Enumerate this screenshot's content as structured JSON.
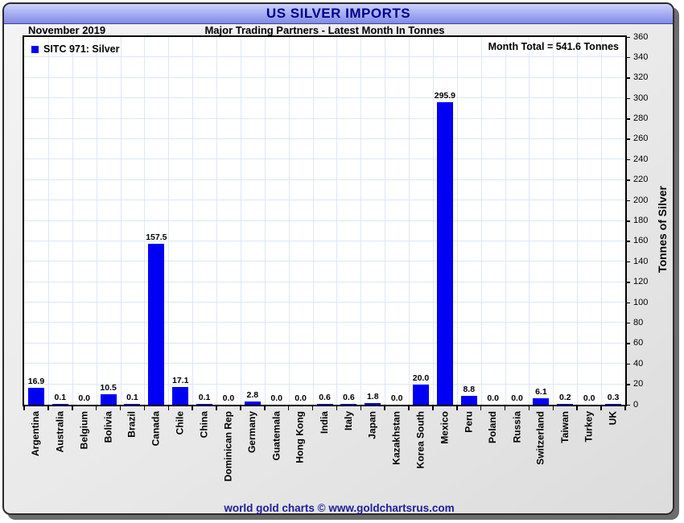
{
  "header": {
    "title": "US SILVER IMPORTS"
  },
  "subheader": {
    "date": "November 2019",
    "title": "Major Trading Partners - Latest Month In Tonnes"
  },
  "legend": {
    "label": "SITC 971: Silver"
  },
  "month_total_label": "Month Total = 541.6 Tonnes",
  "footer": "world gold charts © www.goldchartsrus.com",
  "colors": {
    "bar": "#0000f5",
    "grid": "#dbe8f6",
    "banner_text": "#00008b",
    "footer_text": "#1c1c9c",
    "banner_top": "#cdd1fa",
    "banner_bottom": "#8289e6"
  },
  "chart_data": {
    "type": "bar",
    "title": "US SILVER IMPORTS",
    "subtitle": "Major Trading Partners - Latest Month In Tonnes",
    "period": "November 2019",
    "series_name": "SITC 971: Silver",
    "month_total": 541.6,
    "categories": [
      "Argentina",
      "Australia",
      "Belgium",
      "Bolivia",
      "Brazil",
      "Canada",
      "Chile",
      "China",
      "Dominican Rep",
      "Germany",
      "Guatemala",
      "Hong Kong",
      "India",
      "Italy",
      "Japan",
      "Kazakhstan",
      "Korea South",
      "Mexico",
      "Peru",
      "Poland",
      "Russia",
      "Switzerland",
      "Taiwan",
      "Turkey",
      "UK"
    ],
    "values": [
      16.9,
      0.1,
      0.0,
      10.5,
      0.1,
      157.5,
      17.1,
      0.1,
      0.0,
      2.8,
      0.0,
      0.0,
      0.6,
      0.6,
      1.8,
      0.0,
      20.0,
      295.9,
      8.8,
      0.0,
      0.0,
      6.1,
      0.2,
      0.0,
      0.3
    ],
    "xlabel": "",
    "ylabel": "Tonnes of Silver",
    "ylim": [
      0,
      360
    ],
    "ytick_step": 20,
    "grid": true,
    "legend_position": "top-left",
    "yaxis_side": "right"
  }
}
